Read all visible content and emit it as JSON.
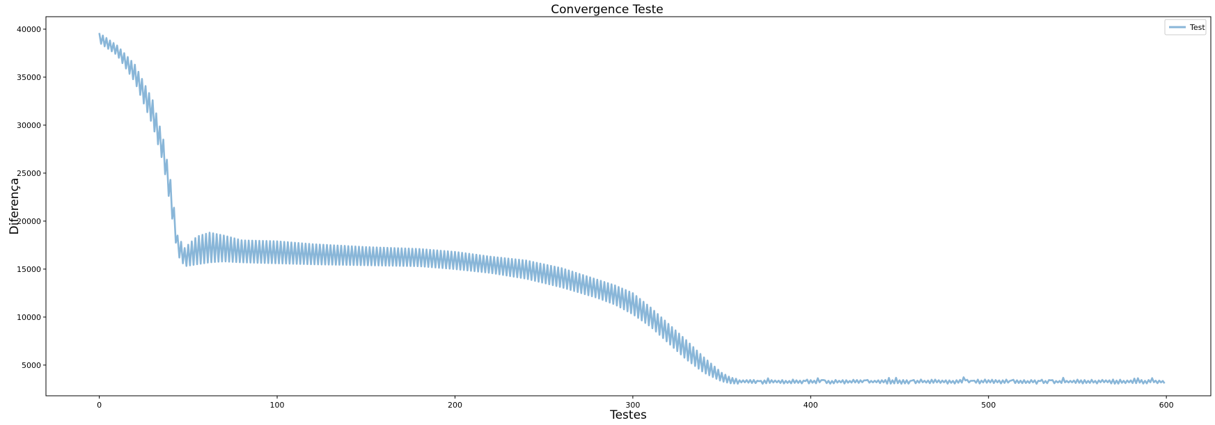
{
  "chart_data": {
    "type": "line",
    "title": "Convergence Teste",
    "xlabel": "Testes",
    "ylabel": "Diferença",
    "xlim": [
      -30,
      625
    ],
    "ylim": [
      1800,
      41300
    ],
    "xticks": [
      0,
      100,
      200,
      300,
      400,
      500,
      600
    ],
    "yticks": [
      5000,
      10000,
      15000,
      20000,
      25000,
      30000,
      35000,
      40000
    ],
    "grid": false,
    "legend_position": "top-right",
    "series": [
      {
        "name": "Test",
        "color": "#89b6d8",
        "x_start": 0,
        "x_end": 599,
        "envelope_upper": [
          [
            0,
            39600
          ],
          [
            10,
            38300
          ],
          [
            20,
            36300
          ],
          [
            30,
            32600
          ],
          [
            36,
            28500
          ],
          [
            40,
            24300
          ],
          [
            44,
            18500
          ],
          [
            48,
            17200
          ],
          [
            55,
            18400
          ],
          [
            62,
            18800
          ],
          [
            70,
            18500
          ],
          [
            80,
            18000
          ],
          [
            100,
            17900
          ],
          [
            120,
            17600
          ],
          [
            150,
            17300
          ],
          [
            180,
            17100
          ],
          [
            200,
            16800
          ],
          [
            220,
            16300
          ],
          [
            240,
            15900
          ],
          [
            260,
            15100
          ],
          [
            280,
            13900
          ],
          [
            290,
            13300
          ],
          [
            300,
            12500
          ],
          [
            310,
            11000
          ],
          [
            320,
            9300
          ],
          [
            330,
            7600
          ],
          [
            340,
            5800
          ],
          [
            350,
            4200
          ],
          [
            355,
            3700
          ],
          [
            360,
            3500
          ],
          [
            599,
            3500
          ]
        ],
        "envelope_lower": [
          [
            0,
            38600
          ],
          [
            10,
            37300
          ],
          [
            20,
            34500
          ],
          [
            30,
            30000
          ],
          [
            36,
            26000
          ],
          [
            40,
            21500
          ],
          [
            44,
            16500
          ],
          [
            48,
            15300
          ],
          [
            55,
            15500
          ],
          [
            62,
            15700
          ],
          [
            70,
            15800
          ],
          [
            80,
            15700
          ],
          [
            100,
            15600
          ],
          [
            120,
            15500
          ],
          [
            150,
            15400
          ],
          [
            180,
            15300
          ],
          [
            200,
            15000
          ],
          [
            220,
            14600
          ],
          [
            240,
            14000
          ],
          [
            260,
            13100
          ],
          [
            280,
            12000
          ],
          [
            290,
            11300
          ],
          [
            300,
            10300
          ],
          [
            310,
            9000
          ],
          [
            320,
            7300
          ],
          [
            330,
            5600
          ],
          [
            340,
            4200
          ],
          [
            350,
            3300
          ],
          [
            355,
            3100
          ],
          [
            360,
            3050
          ],
          [
            599,
            3050
          ]
        ]
      }
    ]
  }
}
